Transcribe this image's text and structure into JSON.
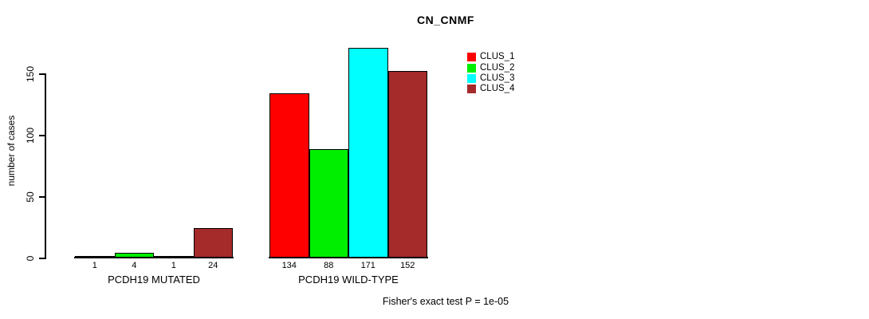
{
  "chart_data": {
    "type": "bar",
    "title": "CN_CNMF",
    "xlabel": "",
    "ylabel": "number of cases",
    "categories": [
      "PCDH19 MUTATED",
      "PCDH19 WILD-TYPE"
    ],
    "series": [
      {
        "name": "CLUS_1",
        "color": "#FF0000",
        "values": [
          1,
          134
        ]
      },
      {
        "name": "CLUS_2",
        "color": "#00EE00",
        "values": [
          4,
          88
        ]
      },
      {
        "name": "CLUS_3",
        "color": "#00FFFF",
        "values": [
          1,
          171
        ]
      },
      {
        "name": "CLUS_4",
        "color": "#A52A2A",
        "values": [
          24,
          152
        ]
      }
    ],
    "yticks": [
      0,
      50,
      100,
      150
    ],
    "ylim": [
      0,
      171
    ],
    "grid": false,
    "bar_value_labels": true,
    "bar_border_color": "#000000",
    "legend_position": "top-right",
    "annotation": "Fisher's exact test P = 1e-05"
  }
}
